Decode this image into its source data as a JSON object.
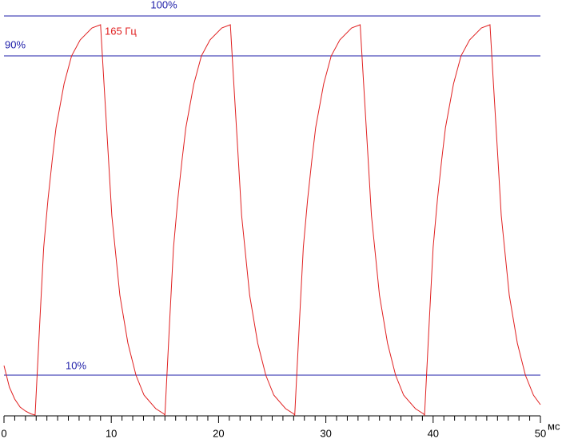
{
  "chart_data": {
    "type": "line",
    "x_label": "мс",
    "x": [
      0,
      0.5,
      1,
      1.5,
      2,
      2.5,
      2.9,
      3.35,
      3.7,
      4.1,
      4.5,
      4.85,
      5.6,
      6.3,
      7.1,
      8.2,
      9.0,
      9.3,
      9.7,
      10.05,
      10.8,
      11.55,
      12.3,
      13.05,
      14.15,
      14.9,
      15,
      15.45,
      15.8,
      16.2,
      16.6,
      16.95,
      17.7,
      18.4,
      19.2,
      20.3,
      21.1,
      21.4,
      21.8,
      22.15,
      22.9,
      23.65,
      24.4,
      25.15,
      26.25,
      27.0,
      27.1,
      27.55,
      27.9,
      28.3,
      28.7,
      29.05,
      29.8,
      30.5,
      31.3,
      32.4,
      33.2,
      33.5,
      33.9,
      34.25,
      35.0,
      35.75,
      36.5,
      37.25,
      38.35,
      39.1,
      39.2,
      39.65,
      40.0,
      40.4,
      40.8,
      41.15,
      41.9,
      42.6,
      43.4,
      44.5,
      45.3,
      45.6,
      46.0,
      46.35,
      47.1,
      47.85,
      48.6,
      49.35,
      50.0
    ],
    "series": [
      {
        "name": "165 Гц",
        "color": "#e02020",
        "values": [
          12.4,
          7,
          4,
          2,
          1,
          0.3,
          0,
          24,
          42,
          54,
          64,
          72,
          83,
          90,
          94,
          97,
          97.8,
          84,
          66,
          50,
          30,
          18,
          10,
          5,
          1.6,
          0.3,
          0,
          24,
          42,
          54,
          64,
          72,
          83,
          90,
          94,
          97,
          97.8,
          84,
          66,
          50,
          30,
          18,
          10,
          5,
          1.6,
          0.3,
          0,
          24,
          42,
          54,
          64,
          72,
          83,
          90,
          94,
          97,
          97.8,
          84,
          66,
          50,
          30,
          18,
          10,
          5,
          1.6,
          0.3,
          0,
          24,
          42,
          54,
          64,
          72,
          83,
          90,
          94,
          97,
          97.8,
          84,
          66,
          50,
          30,
          18,
          10,
          5,
          2.6
        ]
      }
    ],
    "reference_lines": [
      {
        "value": 100,
        "label": "100%"
      },
      {
        "value": 90,
        "label": "90%"
      },
      {
        "value": 10,
        "label": "10%"
      }
    ],
    "reference_color": "#1c1ca8",
    "xlim": [
      0,
      50
    ],
    "xticks": [
      0,
      10,
      20,
      30,
      40,
      50
    ],
    "ylim": [
      0,
      100
    ]
  }
}
